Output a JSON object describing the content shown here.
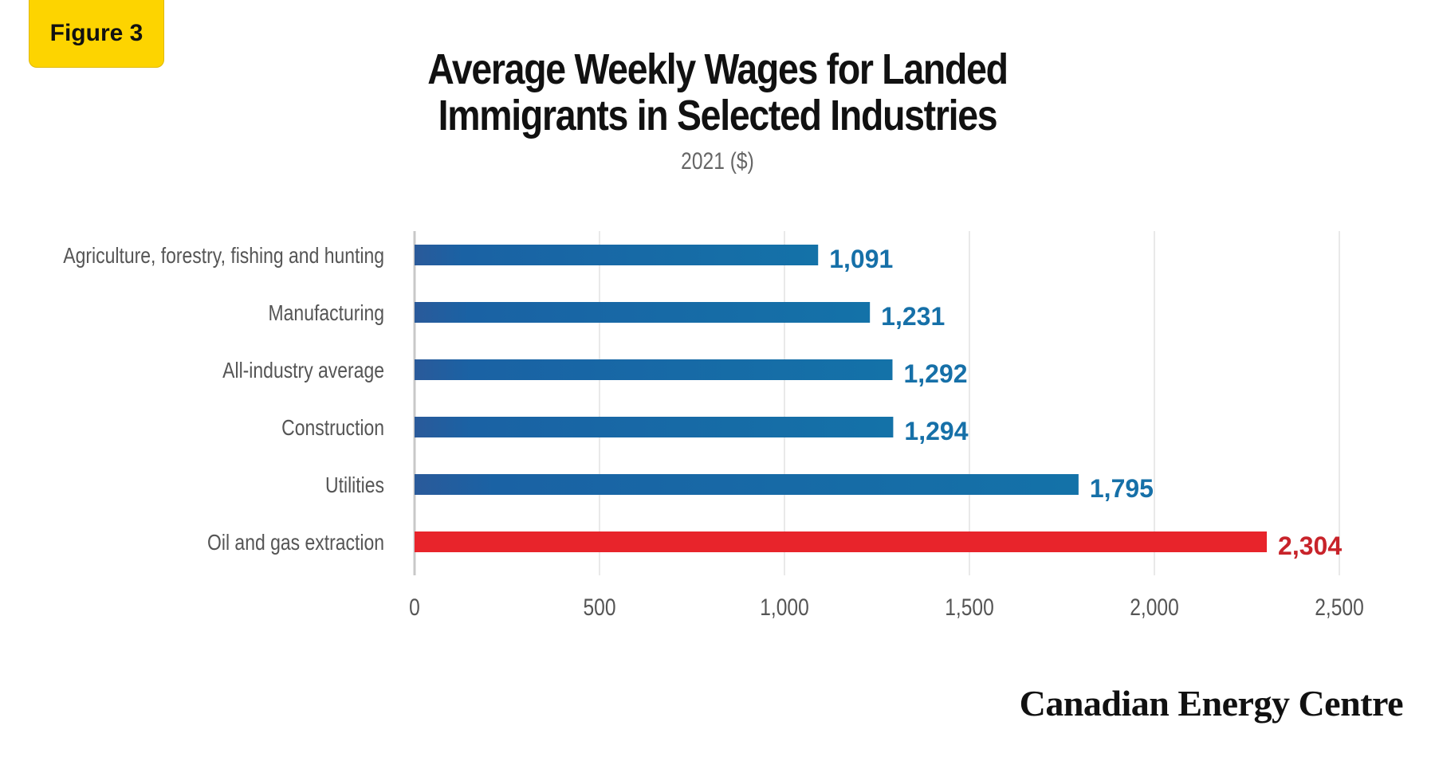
{
  "badge": "Figure 3",
  "title_line1": "Average Weekly Wages for Landed",
  "title_line2": "Immigrants in Selected Industries",
  "subtitle": "2021 ($)",
  "source": "Canadian Energy Centre",
  "colors": {
    "bar_blue": "#1b6aa8",
    "bar_highlight": "#e8242b",
    "label_blue": "#1670a8",
    "label_red": "#c8232a",
    "gridline": "#e2e2e2"
  },
  "chart_data": {
    "type": "bar",
    "orientation": "horizontal",
    "categories": [
      "Agriculture, forestry, fishing and hunting",
      "Manufacturing",
      "All-industry average",
      "Construction",
      "Utilities",
      "Oil and gas extraction"
    ],
    "values": [
      1091,
      1231,
      1292,
      1294,
      1795,
      2304
    ],
    "value_labels": [
      "1,091",
      "1,231",
      "1,292",
      "1,294",
      "1,795",
      "2,304"
    ],
    "highlight_index": 5,
    "xlim": [
      0,
      2500
    ],
    "xticks": [
      0,
      500,
      1000,
      1500,
      2000,
      2500
    ],
    "xtick_labels": [
      "0",
      "500",
      "1,000",
      "1,500",
      "2,000",
      "2,500"
    ],
    "grid": "vertical"
  }
}
